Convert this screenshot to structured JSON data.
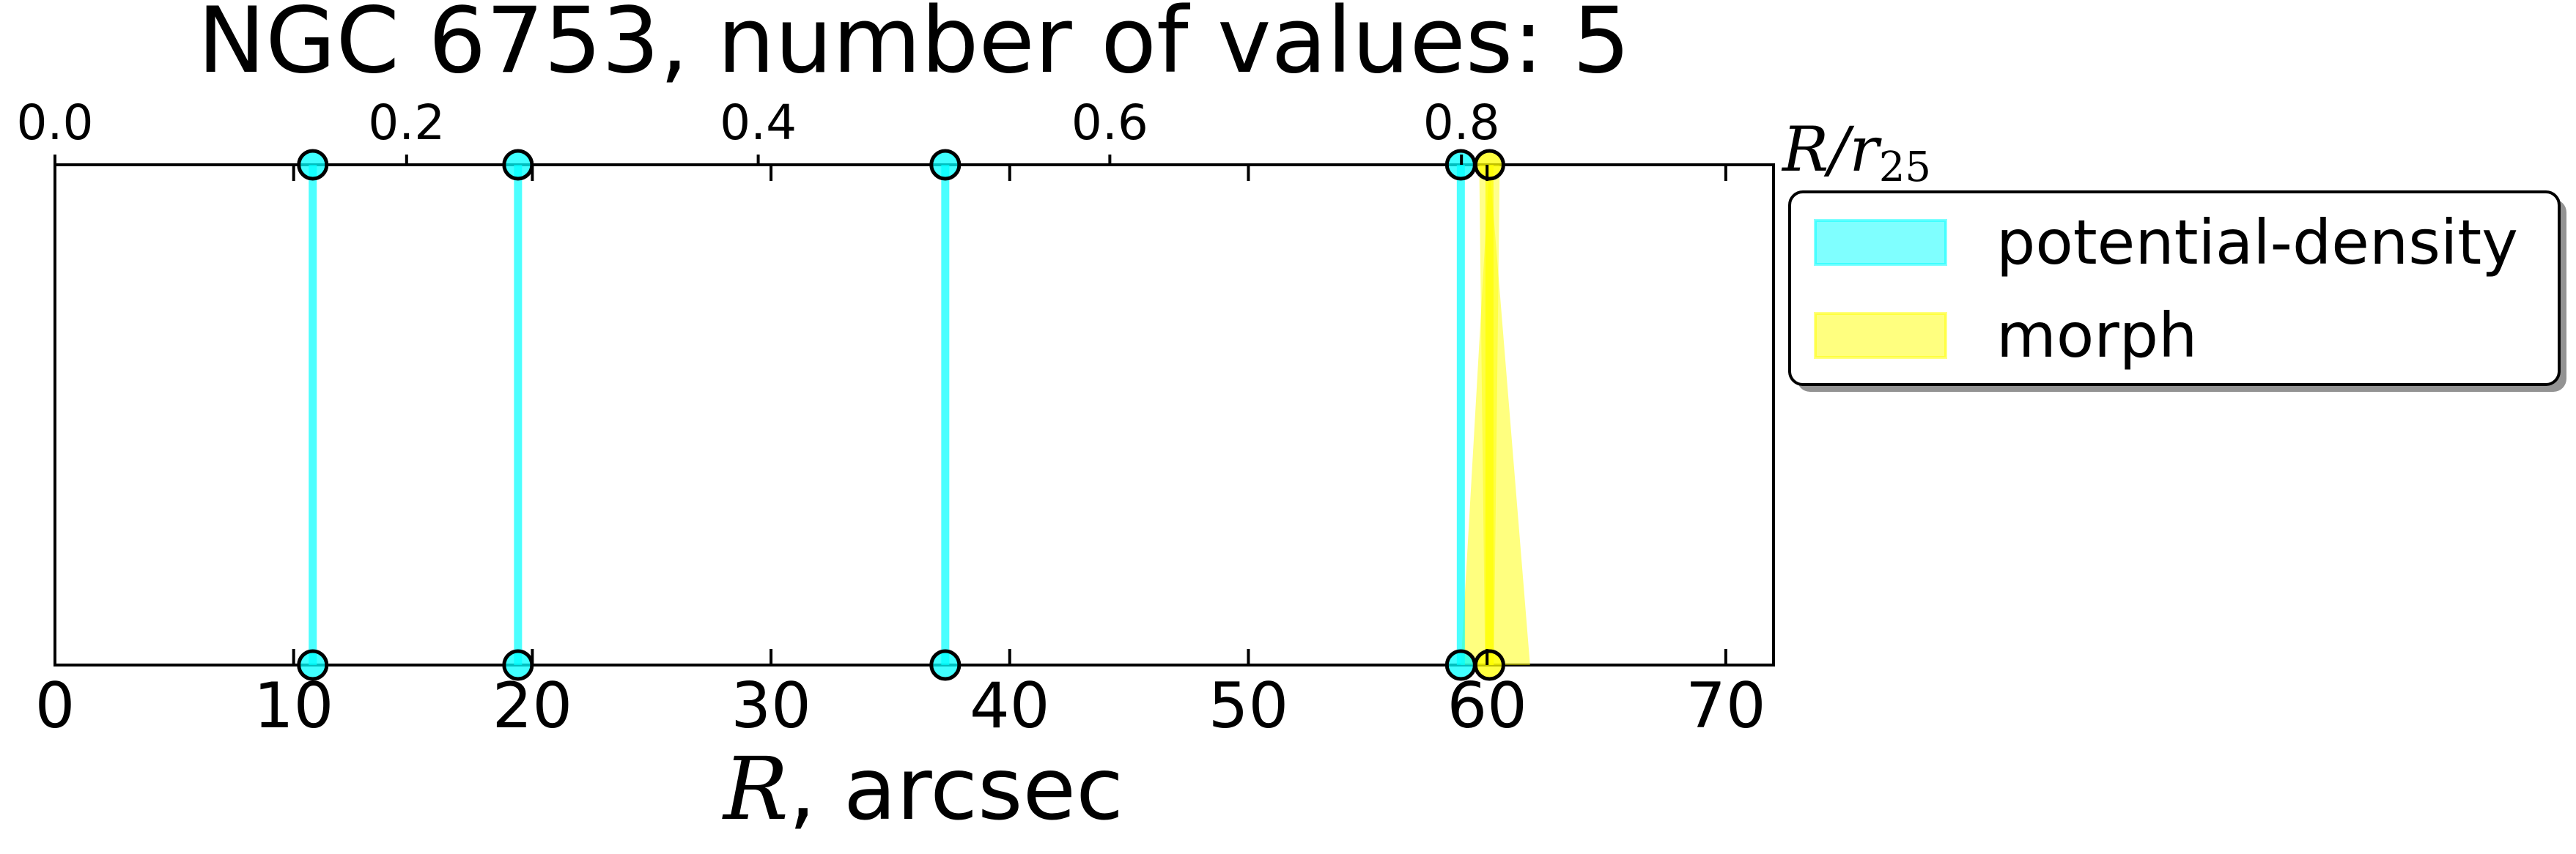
{
  "chart_data": {
    "type": "scatter",
    "title": "NGC 6753, number of values: 5",
    "xlabel_main": "R",
    "xlabel_unit": ", arcsec",
    "x2label_main": "R/r",
    "x2label_sub": "25",
    "xlim": [
      0,
      72
    ],
    "x_ticks": [
      0,
      10,
      20,
      30,
      40,
      50,
      60,
      70
    ],
    "x2lim": [
      0.0,
      0.9775
    ],
    "x2_ticks": [
      0.0,
      0.2,
      0.4,
      0.6,
      0.8
    ],
    "x2_tick_labels": [
      "0.0",
      "0.2",
      "0.4",
      "0.6",
      "0.8"
    ],
    "grid": false,
    "legend_position": "outside-right-top",
    "series": [
      {
        "name": "potential-density",
        "color": "#00ffff",
        "x": [
          10.8,
          19.4,
          37.3,
          58.9
        ]
      },
      {
        "name": "morph",
        "color": "#ffff00",
        "x": [
          60.1
        ],
        "x_err_low": [
          58.9
        ],
        "x_err_high": [
          61.8
        ]
      }
    ]
  }
}
